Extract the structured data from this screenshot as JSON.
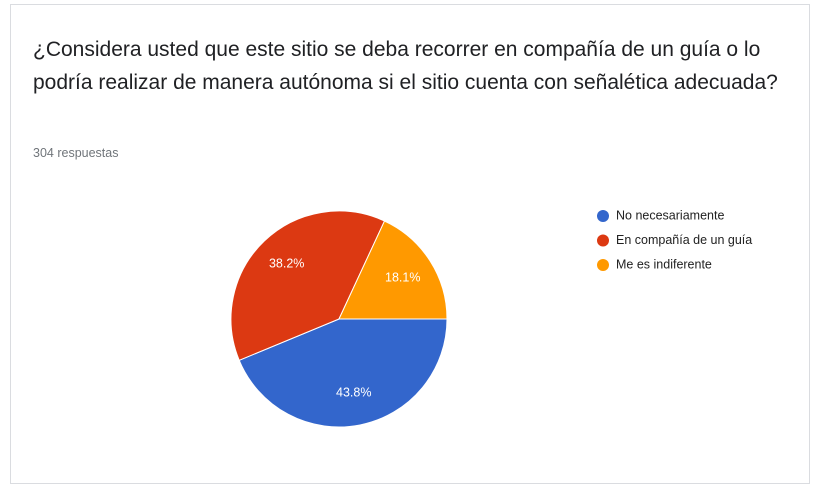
{
  "chart_data": {
    "type": "pie",
    "title": "¿Considera usted que este sitio se deba recorrer en compañía de un guía o lo podría realizar de manera autónoma si el sitio cuenta con señalética adecuada?",
    "subtitle": "304 respuestas",
    "categories": [
      "No necesariamente",
      "En compañía de un guía",
      "Me es indiferente"
    ],
    "values": [
      43.8,
      38.2,
      18.1
    ],
    "value_labels": [
      "43.8%",
      "38.2%",
      "18.1%"
    ],
    "colors": [
      "#3366cc",
      "#dc3912",
      "#ff9900"
    ],
    "legend": "right"
  }
}
